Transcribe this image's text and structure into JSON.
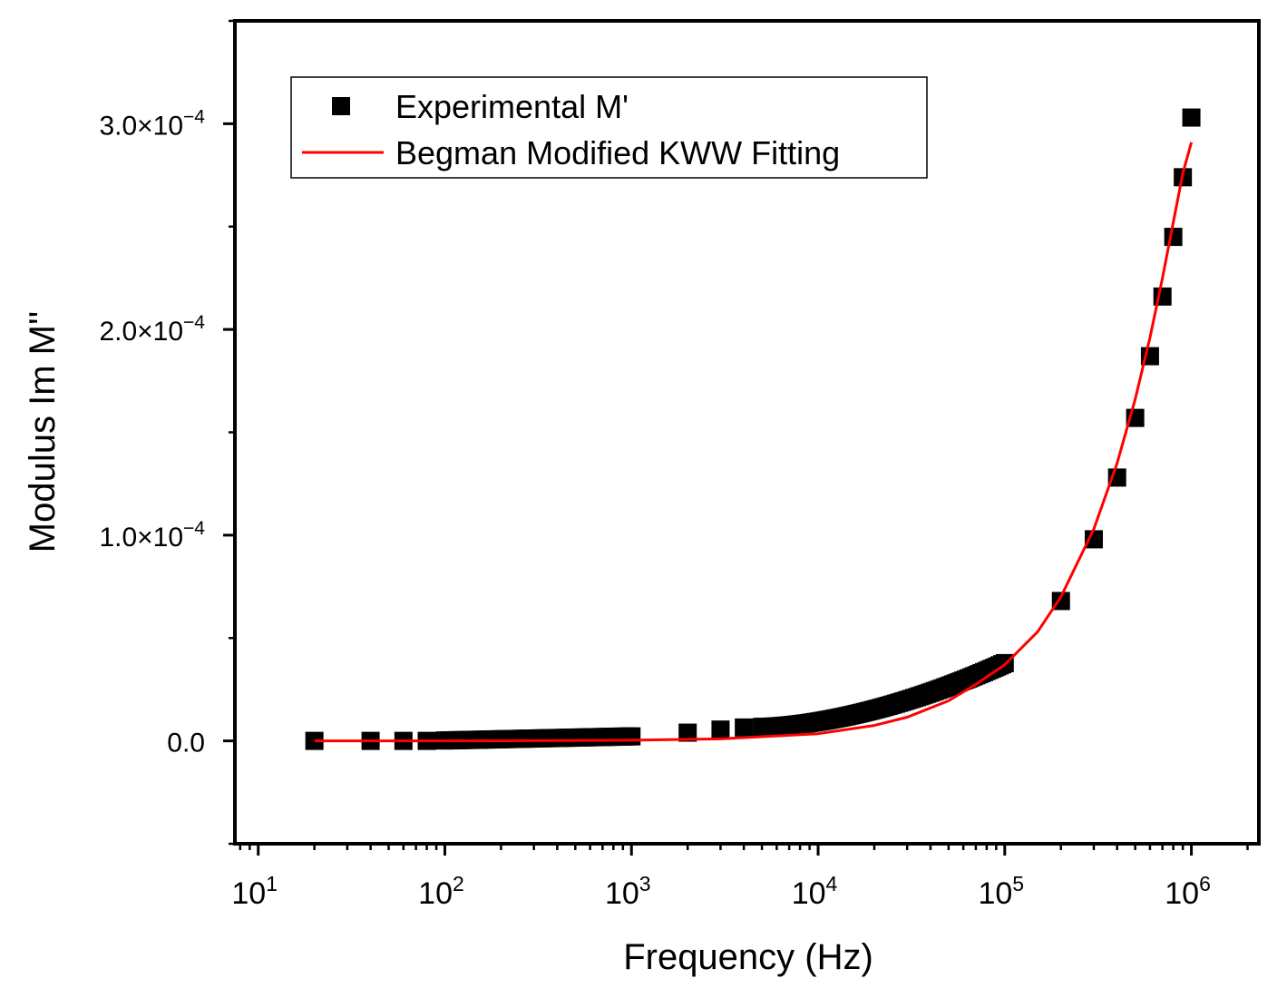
{
  "chart_data": {
    "type": "scatter",
    "xlabel": "Frequency (Hz)",
    "ylabel": "Modulus Im M''",
    "xscale": "log",
    "xlim": [
      7.5,
      2300000
    ],
    "ylim": [
      -5e-05,
      0.00035
    ],
    "x_ticks": [
      {
        "base": "10",
        "exp": "1",
        "value": 10
      },
      {
        "base": "10",
        "exp": "2",
        "value": 100
      },
      {
        "base": "10",
        "exp": "3",
        "value": 1000
      },
      {
        "base": "10",
        "exp": "4",
        "value": 10000
      },
      {
        "base": "10",
        "exp": "5",
        "value": 100000
      },
      {
        "base": "10",
        "exp": "6",
        "value": 1000000
      }
    ],
    "y_ticks": [
      {
        "mantissa": "0.0",
        "exp": "",
        "value": 0
      },
      {
        "mantissa": "1.0×10",
        "exp": "−4",
        "value": 0.0001
      },
      {
        "mantissa": "2.0×10",
        "exp": "−4",
        "value": 0.0002
      },
      {
        "mantissa": "3.0×10",
        "exp": "−4",
        "value": 0.0003
      }
    ],
    "y_minor_ticks": [
      -5e-05,
      5e-05,
      0.00015,
      0.00025,
      0.00035
    ],
    "legend": {
      "position": "top-left",
      "entries": [
        {
          "label": "Experimental M'",
          "marker": "square",
          "color": "#000000"
        },
        {
          "label": "Begman Modified KWW Fitting",
          "marker": "line",
          "color": "#ff0000"
        }
      ]
    },
    "series": [
      {
        "name": "Experimental M'",
        "kind": "points",
        "color": "#000000",
        "dense_ranges": [
          {
            "from": 100,
            "to": 1000,
            "count": 45,
            "y_from": 2e-07,
            "y_to": 2.2e-06,
            "y_exp": 1
          },
          {
            "from": 5000,
            "to": 100000,
            "count": 95,
            "y_from": 6.8e-06,
            "y_to": 3.78e-05,
            "y_exp": 1.7
          }
        ],
        "x": [
          20,
          40,
          60,
          80,
          2000,
          3000,
          4000,
          200000,
          300000,
          400000,
          500000,
          600000,
          700000,
          800000,
          900000,
          1000000
        ],
        "y": [
          0.0,
          0.0,
          0.0,
          0.0,
          4e-06,
          5.5e-06,
          6.5e-06,
          6.8e-05,
          9.8e-05,
          0.000128,
          0.000157,
          0.000187,
          0.000216,
          0.000245,
          0.000274,
          0.000303
        ]
      },
      {
        "name": "Begman Modified KWW Fitting",
        "kind": "line",
        "color": "#ff0000",
        "x": [
          20,
          100,
          300,
          1000,
          3000,
          10000,
          20000,
          30000,
          50000,
          70000,
          100000,
          150000,
          200000,
          300000,
          400000,
          500000,
          600000,
          700000,
          800000,
          900000,
          1000000
        ],
        "y": [
          0.0,
          0.0,
          1e-07,
          3e-07,
          1e-06,
          3.5e-06,
          7.5e-06,
          1.15e-05,
          1.95e-05,
          2.75e-05,
          3.7e-05,
          5.3e-05,
          7e-05,
          0.000103,
          0.000135,
          0.000166,
          0.000196,
          0.000225,
          0.000252,
          0.000276,
          0.000291
        ]
      }
    ]
  }
}
